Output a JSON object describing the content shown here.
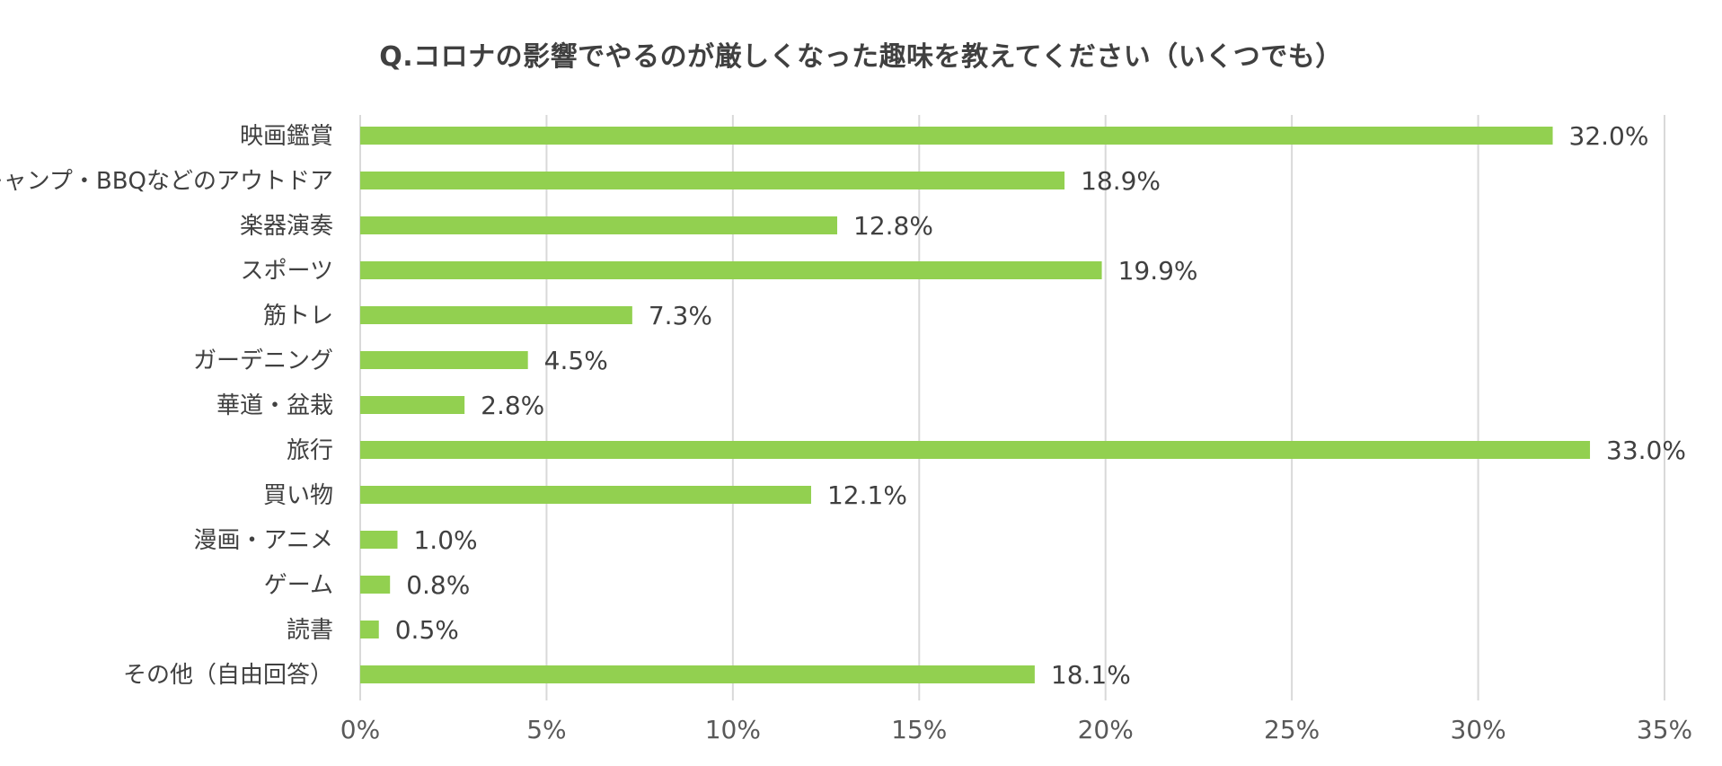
{
  "chart_data": {
    "type": "bar",
    "orientation": "horizontal",
    "title": "Q.コロナの影響でやるのが厳しくなった趣味を教えてください（いくつでも）",
    "categories": [
      "映画鑑賞",
      "キャンプ・BBQなどのアウトドア",
      "楽器演奏",
      "スポーツ",
      "筋トレ",
      "ガーデニング",
      "華道・盆栽",
      "旅行",
      "買い物",
      "漫画・アニメ",
      "ゲーム",
      "読書",
      "その他（自由回答）"
    ],
    "values": [
      32.0,
      18.9,
      12.8,
      19.9,
      7.3,
      4.5,
      2.8,
      33.0,
      12.1,
      1.0,
      0.8,
      0.5,
      18.1
    ],
    "value_labels": [
      "32.0%",
      "18.9%",
      "12.8%",
      "19.9%",
      "7.3%",
      "4.5%",
      "2.8%",
      "33.0%",
      "12.1%",
      "1.0%",
      "0.8%",
      "0.5%",
      "18.1%"
    ],
    "x_ticks": [
      0,
      5,
      10,
      15,
      20,
      25,
      30,
      35
    ],
    "x_tick_labels": [
      "0%",
      "5%",
      "10%",
      "15%",
      "20%",
      "25%",
      "30%",
      "35%"
    ],
    "xlim": [
      0,
      35
    ],
    "grid": true,
    "legend": "none",
    "bar_color": "#92d050"
  }
}
